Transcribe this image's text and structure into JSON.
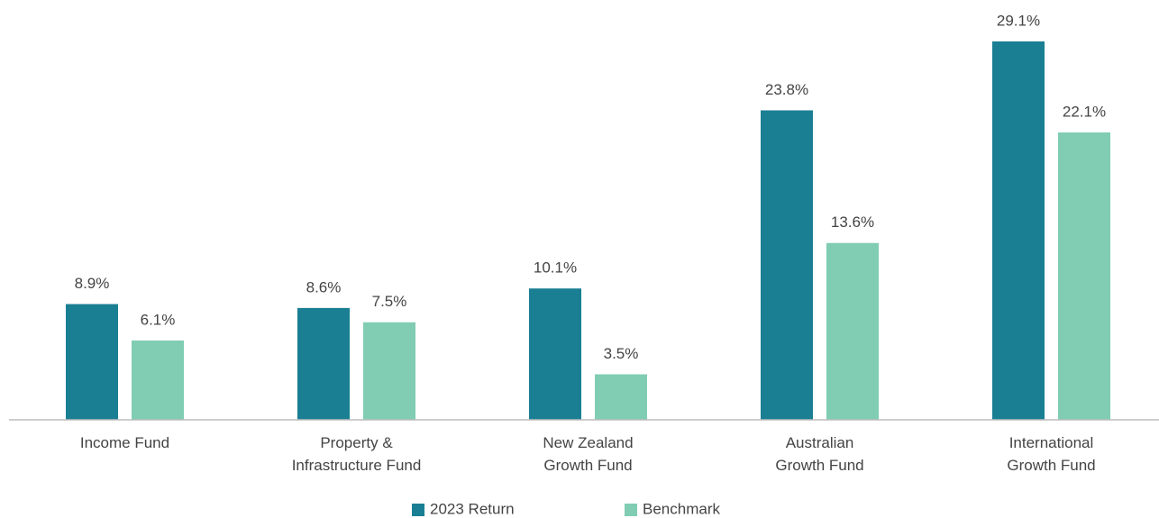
{
  "chart_data": {
    "type": "bar",
    "categories": [
      [
        "Income Fund"
      ],
      [
        "Property &",
        "Infrastructure Fund"
      ],
      [
        "New Zealand",
        "Growth Fund"
      ],
      [
        "Australian",
        "Growth Fund"
      ],
      [
        "International",
        "Growth Fund"
      ]
    ],
    "series": [
      {
        "name": "2023 Return",
        "color": "#1a7f93",
        "values": [
          8.9,
          8.6,
          10.1,
          23.8,
          29.1
        ],
        "value_labels": [
          "8.9%",
          "8.6%",
          "10.1%",
          "23.8%",
          "29.1%"
        ]
      },
      {
        "name": "Benchmark",
        "color": "#80cdb3",
        "values": [
          6.1,
          7.5,
          3.5,
          13.6,
          22.1
        ],
        "value_labels": [
          "6.1%",
          "7.5%",
          "3.5%",
          "13.6%",
          "22.1%"
        ]
      }
    ],
    "ylim": [
      0,
      30
    ],
    "legend": "bottom"
  }
}
